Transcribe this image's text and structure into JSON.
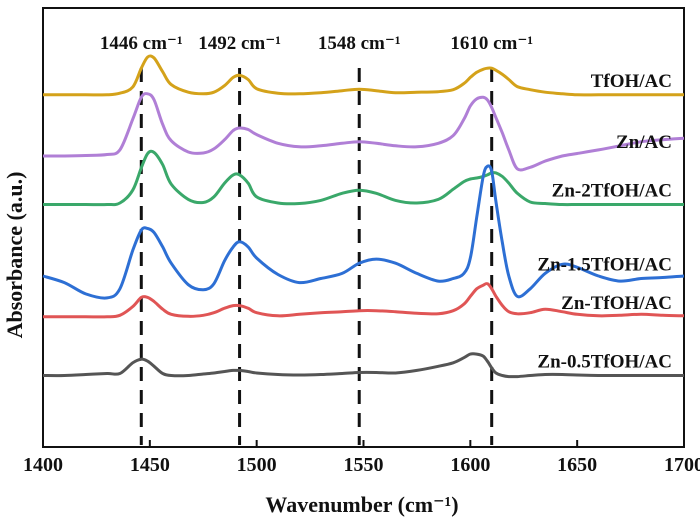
{
  "chart_data": {
    "type": "line",
    "title": "",
    "xlabel": "Wavenumber (cm⁻¹)",
    "ylabel": "Absorbance (a.u.)",
    "xlim": [
      1400,
      1700
    ],
    "xticks": [
      1400,
      1450,
      1500,
      1550,
      1600,
      1650,
      1700
    ],
    "yticks": [],
    "peak_markers": [
      {
        "x": 1446,
        "label": "1446 cm⁻¹"
      },
      {
        "x": 1492,
        "label": "1492 cm⁻¹"
      },
      {
        "x": 1548,
        "label": "1548 cm⁻¹"
      },
      {
        "x": 1610,
        "label": "1610 cm⁻¹"
      }
    ],
    "x": [
      1400,
      1410,
      1420,
      1430,
      1436,
      1442,
      1446,
      1449,
      1452,
      1456,
      1460,
      1468,
      1475,
      1480,
      1485,
      1489,
      1492,
      1496,
      1500,
      1510,
      1520,
      1530,
      1540,
      1548,
      1556,
      1565,
      1575,
      1585,
      1592,
      1597,
      1600,
      1603,
      1606,
      1608,
      1610,
      1612,
      1615,
      1618,
      1622,
      1628,
      1635,
      1643,
      1650,
      1660,
      1670,
      1680,
      1690,
      1700
    ],
    "series": [
      {
        "name": "TfOH/AC",
        "color": "#d4a21a",
        "offset": 4.5,
        "values": [
          0,
          0,
          0,
          0,
          0.03,
          0.15,
          0.52,
          0.74,
          0.72,
          0.45,
          0.2,
          0.05,
          0.02,
          0.05,
          0.18,
          0.34,
          0.38,
          0.3,
          0.12,
          0.03,
          0.02,
          0.04,
          0.08,
          0.11,
          0.08,
          0.04,
          0.05,
          0.06,
          0.1,
          0.22,
          0.34,
          0.44,
          0.5,
          0.52,
          0.52,
          0.48,
          0.4,
          0.3,
          0.16,
          0.1,
          0.05,
          0.02,
          0,
          0,
          0,
          0,
          0,
          0
        ]
      },
      {
        "name": "Zn/AC",
        "color": "#b07fd6",
        "offset": 3.3,
        "values": [
          0,
          0,
          0.01,
          0.03,
          0.12,
          0.72,
          1.15,
          1.22,
          1.1,
          0.62,
          0.3,
          0.08,
          0.06,
          0.14,
          0.32,
          0.5,
          0.55,
          0.52,
          0.42,
          0.25,
          0.18,
          0.2,
          0.25,
          0.28,
          0.25,
          0.2,
          0.18,
          0.25,
          0.4,
          0.72,
          0.98,
          1.12,
          1.15,
          1.1,
          0.95,
          0.75,
          0.45,
          0.12,
          -0.25,
          -0.22,
          -0.1,
          0,
          0.05,
          0.12,
          0.2,
          0.28,
          0.32,
          0.35
        ]
      },
      {
        "name": "Zn-2TfOH/AC",
        "color": "#3aa86a",
        "offset": 2.35,
        "values": [
          0,
          0,
          0,
          0,
          0.03,
          0.28,
          0.72,
          1.0,
          1.02,
          0.78,
          0.4,
          0.1,
          0.04,
          0.15,
          0.42,
          0.58,
          0.58,
          0.42,
          0.15,
          0.03,
          0.02,
          0.08,
          0.22,
          0.28,
          0.22,
          0.08,
          0.03,
          0.1,
          0.3,
          0.45,
          0.5,
          0.52,
          0.55,
          0.58,
          0.62,
          0.62,
          0.55,
          0.42,
          0.22,
          0.05,
          0.02,
          0,
          0,
          0,
          0,
          0,
          0,
          0
        ]
      },
      {
        "name": "Zn-1.5TfOH/AC",
        "color": "#2d6fd4",
        "offset": 0.9,
        "values": [
          0.05,
          -0.08,
          -0.3,
          -0.38,
          -0.2,
          0.55,
          0.95,
          0.98,
          0.9,
          0.62,
          0.3,
          -0.12,
          -0.22,
          -0.1,
          0.35,
          0.62,
          0.72,
          0.62,
          0.4,
          0.08,
          -0.08,
          0,
          0.1,
          0.3,
          0.38,
          0.3,
          0.1,
          -0.05,
          0,
          0.1,
          0.4,
          1.2,
          2.0,
          2.2,
          2.1,
          1.5,
          0.7,
          0.05,
          -0.35,
          -0.2,
          0.1,
          0.28,
          0.22,
          0.05,
          -0.05,
          0,
          0.02,
          0.05
        ]
      },
      {
        "name": "Zn-TfOH/AC",
        "color": "#e05555",
        "offset": 0.15,
        "values": [
          0,
          0,
          0,
          0,
          0.03,
          0.2,
          0.38,
          0.38,
          0.3,
          0.15,
          0.05,
          0.01,
          0.03,
          0.08,
          0.17,
          0.22,
          0.22,
          0.17,
          0.08,
          0.02,
          0.05,
          0.08,
          0.1,
          0.12,
          0.12,
          0.1,
          0.07,
          0.06,
          0.12,
          0.25,
          0.4,
          0.55,
          0.62,
          0.65,
          0.55,
          0.4,
          0.22,
          0.1,
          0.06,
          0.08,
          0.15,
          0.1,
          0.05,
          0.02,
          0.03,
          0.05,
          0.03,
          0.02
        ]
      },
      {
        "name": "Zn-0.5TfOH/AC",
        "color": "#555555",
        "offset": -1.0,
        "values": [
          0,
          0,
          0.02,
          0.04,
          0.04,
          0.25,
          0.32,
          0.28,
          0.18,
          0.04,
          0,
          0,
          0.03,
          0.05,
          0.08,
          0.1,
          0.1,
          0.08,
          0.05,
          0.02,
          0.01,
          0.02,
          0.04,
          0.06,
          0.06,
          0.05,
          0.1,
          0.18,
          0.25,
          0.35,
          0.42,
          0.42,
          0.38,
          0.28,
          0.15,
          0.05,
          0,
          -0.02,
          -0.02,
          0,
          0.02,
          0.02,
          0.01,
          0,
          0,
          0,
          0,
          0
        ]
      }
    ]
  }
}
